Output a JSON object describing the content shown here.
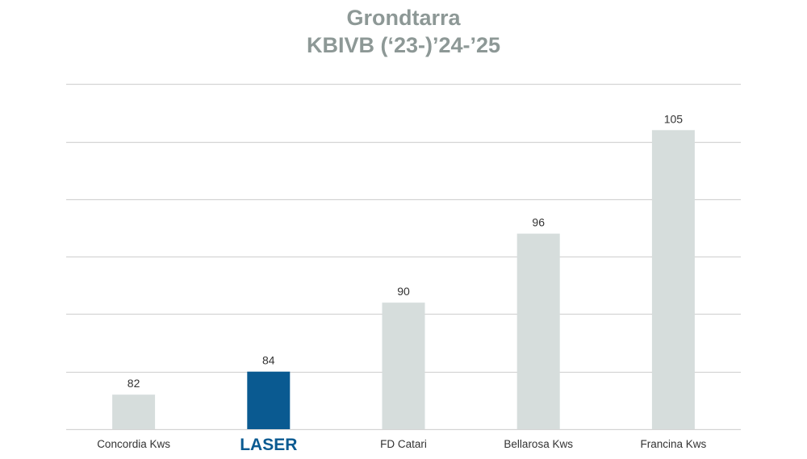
{
  "colors": {
    "bar_default": "#d6dddc",
    "bar_highlight": "#0a5a91",
    "gridline": "#d4d4d4",
    "title": "#8d9896",
    "label": "#333333"
  },
  "chart_data": {
    "type": "bar",
    "title": "Grondtarra",
    "subtitle": "KBIVB (‘23-)’24-’25",
    "categories": [
      "Concordia Kws",
      "LASER",
      "FD Catari",
      "Bellarosa Kws",
      "Francina Kws"
    ],
    "values": [
      82,
      84,
      90,
      96,
      105
    ],
    "highlight_category": "LASER",
    "ylim": [
      79,
      110
    ],
    "grid_values": [
      79,
      84,
      89,
      94,
      99,
      104,
      109
    ],
    "grid": true,
    "legend": "none",
    "xlabel": "",
    "ylabel": ""
  }
}
